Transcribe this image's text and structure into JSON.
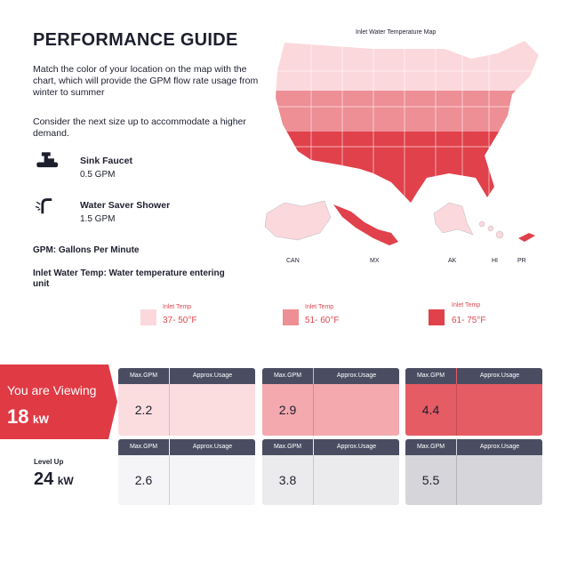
{
  "header": {
    "title": "PERFORMANCE GUIDE"
  },
  "intro": [
    "Match the color of your location on the map with the chart, which will provide the GPM flow rate usage from winter to summer",
    "Consider the next size up to accommodate a higher demand."
  ],
  "fixtures": [
    {
      "name": "Sink Faucet",
      "flow": "0.5 GPM"
    },
    {
      "name": "Water Saver Shower",
      "flow": "1.5 GPM"
    }
  ],
  "notes": [
    "GPM: Gallons Per Minute",
    "Inlet Water Temp: Water temperature entering unit"
  ],
  "map": {
    "title": "Inlet Water Temperature Map",
    "labels": [
      "CAN",
      "MX",
      "AK",
      "HI",
      "PR"
    ]
  },
  "legend": [
    {
      "label": "Inlet Temp",
      "range": "37- 50°F"
    },
    {
      "label": "Inlet Temp",
      "range": "51- 60°F"
    },
    {
      "label": "Inlet Temp",
      "range": "61- 75°F"
    }
  ],
  "rows": [
    {
      "label": "You are Viewing",
      "size": "18",
      "unit": "kW",
      "cells": [
        {
          "max_header": "Max.GPM",
          "usage_header": "Approx.Usage",
          "value": 2.2
        },
        {
          "max_header": "Max.GPM",
          "usage_header": "Approx.Usage",
          "value": 2.9
        },
        {
          "max_header": "Max.GPM",
          "usage_header": "Approx.Usage",
          "value": 4.4
        }
      ]
    },
    {
      "label": "Level Up",
      "size": "24",
      "unit": "kW",
      "cells": [
        {
          "max_header": "Max.GPM",
          "usage_header": "Approx.Usage",
          "value": 2.6
        },
        {
          "max_header": "Max.GPM",
          "usage_header": "Approx.Usage",
          "value": 3.8
        },
        {
          "max_header": "Max.GPM",
          "usage_header": "Approx.Usage",
          "value": 5.5
        }
      ]
    }
  ]
}
